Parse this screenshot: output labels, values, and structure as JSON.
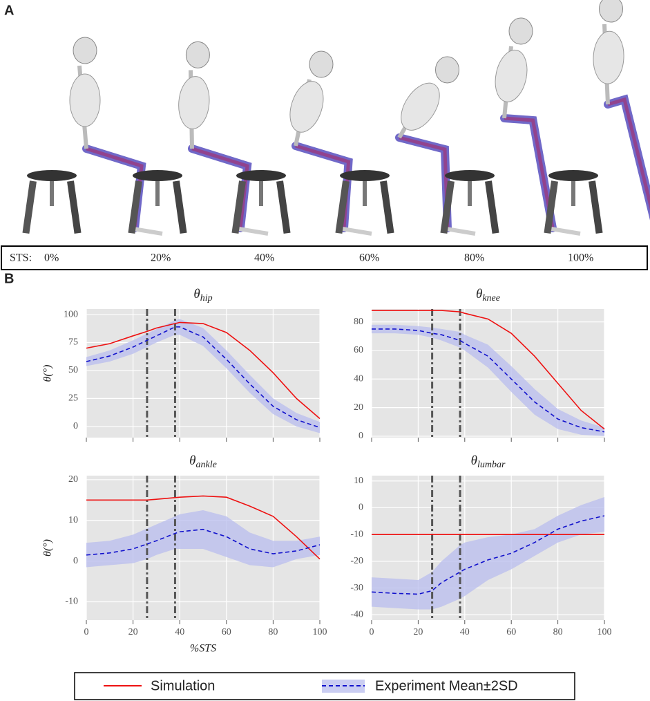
{
  "panel_labels": [
    "A",
    "B"
  ],
  "sts_prefix": "STS:",
  "sts_labels": [
    "0%",
    "20%",
    "40%",
    "60%",
    "80%",
    "100%"
  ],
  "chart_data": [
    {
      "type": "line",
      "title_symbol": "θ",
      "title_sub": "hip",
      "ylabel": "θ(°)",
      "show_xtick_labels": false,
      "x": [
        0,
        10,
        20,
        26,
        30,
        38,
        40,
        50,
        60,
        70,
        80,
        90,
        100
      ],
      "xlim": [
        0,
        100
      ],
      "xticks": [
        0,
        20,
        40,
        60,
        80,
        100
      ],
      "ylim": [
        -10,
        105
      ],
      "yticks": [
        0,
        25,
        50,
        75,
        100
      ],
      "vlines": [
        26,
        38
      ],
      "grid": true,
      "series": [
        {
          "name": "Simulation",
          "color": "#ee1111",
          "values": [
            70,
            74,
            81,
            85,
            88,
            92,
            93,
            92,
            84,
            68,
            48,
            25,
            7
          ]
        },
        {
          "name": "Experiment Mean±2SD",
          "color": "#1111cc",
          "band_color": "#b8bcee",
          "values": [
            58,
            63,
            71,
            77,
            81,
            89,
            89,
            80,
            60,
            38,
            18,
            6,
            -1
          ],
          "lower": [
            54,
            58,
            65,
            71,
            75,
            82,
            82,
            72,
            52,
            30,
            11,
            0,
            -6
          ],
          "upper": [
            62,
            68,
            77,
            83,
            87,
            95,
            96,
            88,
            68,
            46,
            25,
            12,
            4
          ]
        }
      ]
    },
    {
      "type": "line",
      "title_symbol": "θ",
      "title_sub": "knee",
      "show_xtick_labels": false,
      "x": [
        0,
        10,
        20,
        26,
        30,
        38,
        40,
        50,
        60,
        70,
        80,
        90,
        100
      ],
      "xlim": [
        0,
        100
      ],
      "xticks": [
        0,
        20,
        40,
        60,
        80,
        100
      ],
      "ylim": [
        -1,
        89
      ],
      "yticks": [
        0,
        20,
        40,
        60,
        80
      ],
      "vlines": [
        26,
        38
      ],
      "grid": true,
      "series": [
        {
          "name": "Simulation",
          "color": "#ee1111",
          "values": [
            88,
            88,
            88,
            88,
            88,
            87,
            86,
            82,
            72,
            56,
            37,
            18,
            5
          ]
        },
        {
          "name": "Experiment Mean±2SD",
          "color": "#1111cc",
          "band_color": "#b8bcee",
          "values": [
            75,
            75,
            74,
            72,
            71,
            67,
            65,
            56,
            40,
            24,
            12,
            6,
            3
          ],
          "lower": [
            72,
            72,
            71,
            69,
            67,
            62,
            60,
            48,
            31,
            15,
            5,
            1,
            0
          ],
          "upper": [
            78,
            78,
            77,
            76,
            75,
            73,
            71,
            64,
            49,
            33,
            19,
            11,
            6
          ]
        }
      ]
    },
    {
      "type": "line",
      "title_symbol": "θ",
      "title_sub": "ankle",
      "ylabel": "θ(°)",
      "xlabel": "%STS",
      "show_xtick_labels": true,
      "x": [
        0,
        10,
        20,
        26,
        30,
        38,
        40,
        50,
        60,
        70,
        80,
        90,
        100
      ],
      "xlim": [
        0,
        100
      ],
      "xticks": [
        0,
        20,
        40,
        60,
        80,
        100
      ],
      "ylim": [
        -14.5,
        21
      ],
      "yticks": [
        -10,
        0,
        10,
        20
      ],
      "vlines": [
        26,
        38
      ],
      "grid": true,
      "series": [
        {
          "name": "Simulation",
          "color": "#ee1111",
          "values": [
            15,
            15,
            15,
            15,
            15.2,
            15.6,
            15.7,
            16,
            15.7,
            13.5,
            11,
            6,
            0.5
          ]
        },
        {
          "name": "Experiment Mean±2SD",
          "color": "#1111cc",
          "band_color": "#b8bcee",
          "values": [
            1.5,
            2,
            3,
            4.2,
            5,
            6.8,
            7.2,
            7.8,
            6,
            3,
            1.8,
            2.5,
            4
          ],
          "lower": [
            -1.5,
            -1,
            -0.5,
            0.5,
            1.5,
            3,
            3,
            3,
            1,
            -1,
            -1.5,
            0.5,
            1.5
          ],
          "upper": [
            4.5,
            5,
            6.5,
            8,
            9,
            11,
            11.5,
            12.5,
            11,
            7,
            5,
            5,
            6
          ]
        }
      ]
    },
    {
      "type": "line",
      "title_symbol": "θ",
      "title_sub": "lumbar",
      "show_xtick_labels": true,
      "x": [
        0,
        10,
        20,
        26,
        30,
        38,
        40,
        50,
        60,
        70,
        80,
        90,
        100
      ],
      "xlim": [
        0,
        100
      ],
      "xticks": [
        0,
        20,
        40,
        60,
        80,
        100
      ],
      "ylim": [
        -42,
        12
      ],
      "yticks": [
        -40,
        -30,
        -20,
        -10,
        0,
        10
      ],
      "vlines": [
        26,
        38
      ],
      "grid": true,
      "series": [
        {
          "name": "Simulation",
          "color": "#ee1111",
          "values": [
            -10,
            -10,
            -10,
            -10,
            -10,
            -10,
            -10,
            -10,
            -10,
            -10,
            -10,
            -10,
            -10
          ]
        },
        {
          "name": "Experiment Mean±2SD",
          "color": "#1111cc",
          "band_color": "#b8bcee",
          "values": [
            -31.5,
            -32,
            -32.3,
            -31,
            -28,
            -24,
            -23,
            -19.5,
            -17,
            -13,
            -8,
            -5,
            -3
          ],
          "lower": [
            -37,
            -37.5,
            -38,
            -38,
            -37,
            -34,
            -33,
            -27,
            -23,
            -18,
            -13,
            -10,
            -9
          ],
          "upper": [
            -26,
            -26.5,
            -27,
            -24,
            -20,
            -14,
            -13,
            -11,
            -10,
            -8,
            -3,
            1,
            4
          ]
        }
      ]
    }
  ]
}
